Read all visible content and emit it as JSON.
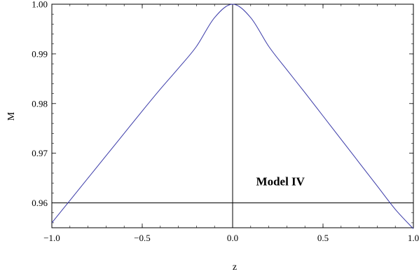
{
  "chart_data": {
    "type": "line",
    "title": "",
    "xlabel": "z",
    "ylabel": "M",
    "xlim": [
      -1.0,
      1.0
    ],
    "ylim": [
      0.955,
      1.0
    ],
    "xticks": [
      -1.0,
      -0.5,
      0.0,
      0.5,
      1.0
    ],
    "xtick_labels": [
      "−1.0",
      "−0.5",
      "0.0",
      "0.5",
      "1.0"
    ],
    "yticks": [
      0.96,
      0.97,
      0.98,
      0.99,
      1.0
    ],
    "ytick_labels": [
      "0.96",
      "0.97",
      "0.98",
      "0.99",
      "1.00"
    ],
    "grid": false,
    "series": [
      {
        "color": "#3a3aa8",
        "x": [
          -1.0,
          -0.9,
          -0.8,
          -0.7,
          -0.6,
          -0.5,
          -0.4,
          -0.3,
          -0.2,
          -0.1,
          0.0,
          0.1,
          0.2,
          0.3,
          0.4,
          0.5,
          0.6,
          0.7,
          0.8,
          0.9,
          1.0
        ],
        "y": [
          0.956,
          0.9605,
          0.965,
          0.9695,
          0.974,
          0.9785,
          0.9829,
          0.9871,
          0.9915,
          0.9973,
          1.0,
          0.9973,
          0.9915,
          0.9868,
          0.9822,
          0.9775,
          0.9728,
          0.9681,
          0.9634,
          0.9587,
          0.9548
        ]
      }
    ],
    "reference_lines": [
      {
        "orientation": "horizontal",
        "value": 0.96
      },
      {
        "orientation": "vertical",
        "value": 0.0
      }
    ],
    "annotations": [
      {
        "text": "Model IV",
        "x": 0.13,
        "y": 0.9635
      }
    ]
  }
}
